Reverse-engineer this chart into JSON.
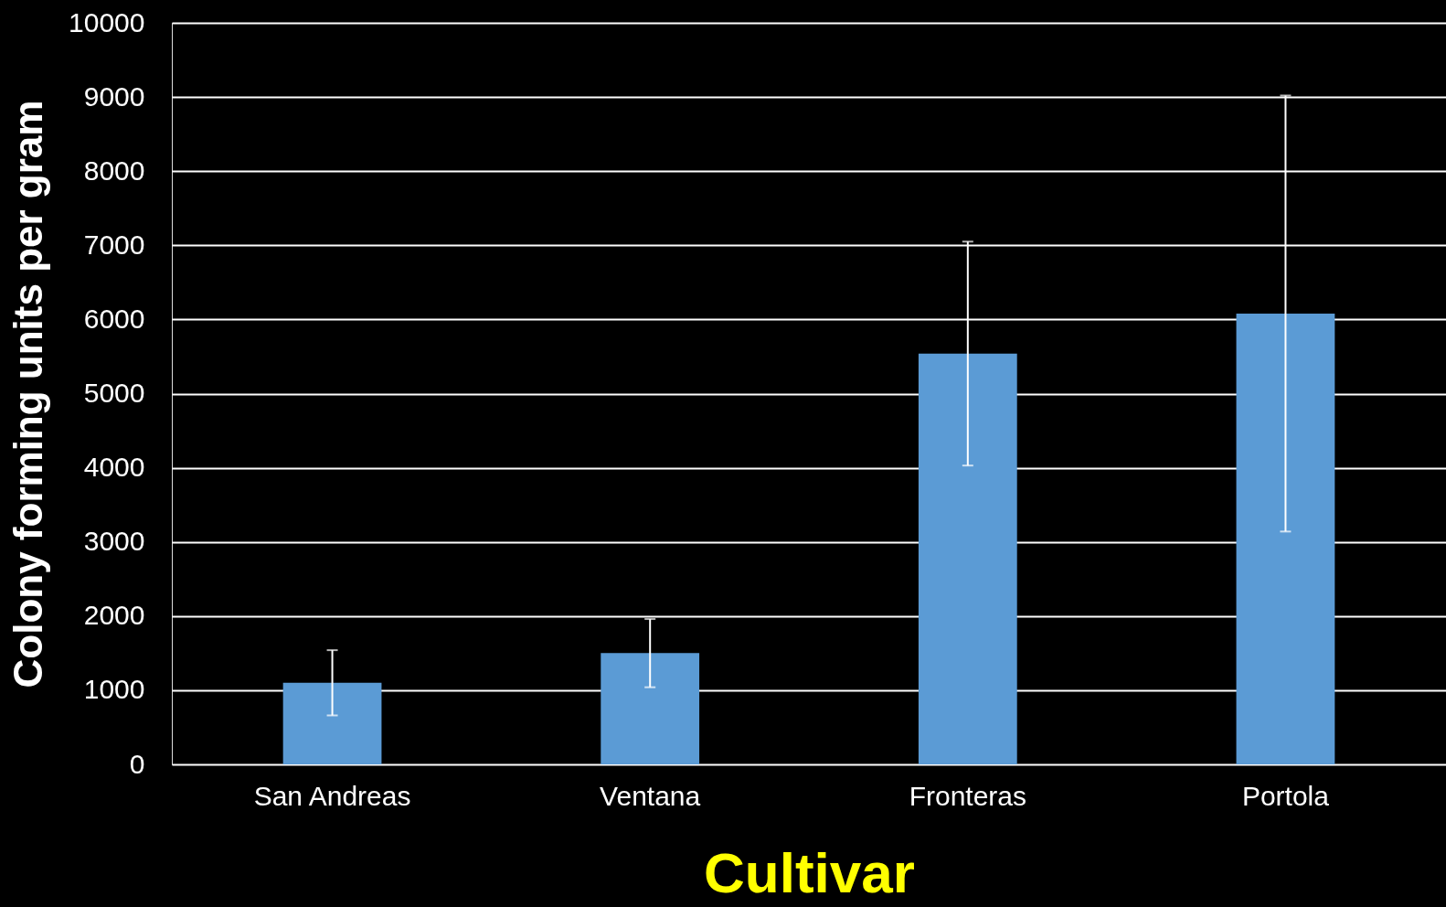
{
  "chart_data": {
    "type": "bar",
    "xlabel": "Cultivar",
    "ylabel": "Colony forming units per gram",
    "categories": [
      "San Andreas",
      "Ventana",
      "Fronteras",
      "Portola"
    ],
    "values": [
      1100,
      1500,
      5540,
      6080
    ],
    "errors": [
      440,
      460,
      1510,
      2940
    ],
    "color": "#5b9bd5",
    "ylim": [
      0,
      10000
    ],
    "yticks": [
      0,
      1000,
      2000,
      3000,
      4000,
      5000,
      6000,
      7000,
      8000,
      9000,
      10000
    ],
    "grid": "y"
  }
}
